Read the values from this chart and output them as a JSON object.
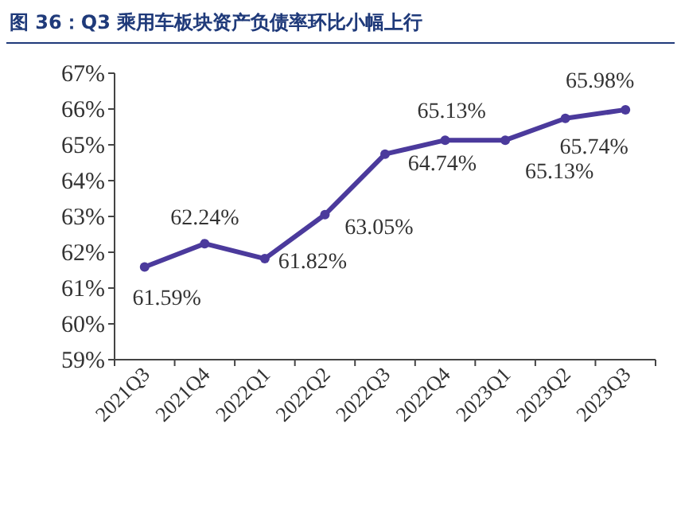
{
  "chart_data": {
    "type": "line",
    "title": "图 36：Q3 乘用车板块资产负债率环比小幅上行",
    "categories": [
      "2021Q3",
      "2021Q4",
      "2022Q1",
      "2022Q2",
      "2022Q3",
      "2022Q4",
      "2023Q1",
      "2023Q2",
      "2023Q3"
    ],
    "series": [
      {
        "color": "#4b3a9c",
        "values": [
          61.59,
          62.24,
          61.82,
          63.05,
          64.74,
          65.13,
          65.13,
          65.74,
          65.98
        ],
        "value_labels": [
          "61.59%",
          "62.24%",
          "61.82%",
          "63.05%",
          "64.74%",
          "65.13%",
          "65.13%",
          "65.74%",
          "65.98%"
        ]
      }
    ],
    "ylim": [
      59,
      67
    ],
    "yticks": [
      {
        "value": 59,
        "label": "59%"
      },
      {
        "value": 60,
        "label": "60%"
      },
      {
        "value": 61,
        "label": "61%"
      },
      {
        "value": 62,
        "label": "62%"
      },
      {
        "value": 63,
        "label": "63%"
      },
      {
        "value": 64,
        "label": "64%"
      },
      {
        "value": 65,
        "label": "65%"
      },
      {
        "value": 66,
        "label": "66%"
      },
      {
        "value": 67,
        "label": "67%"
      }
    ],
    "marker": "circle"
  }
}
